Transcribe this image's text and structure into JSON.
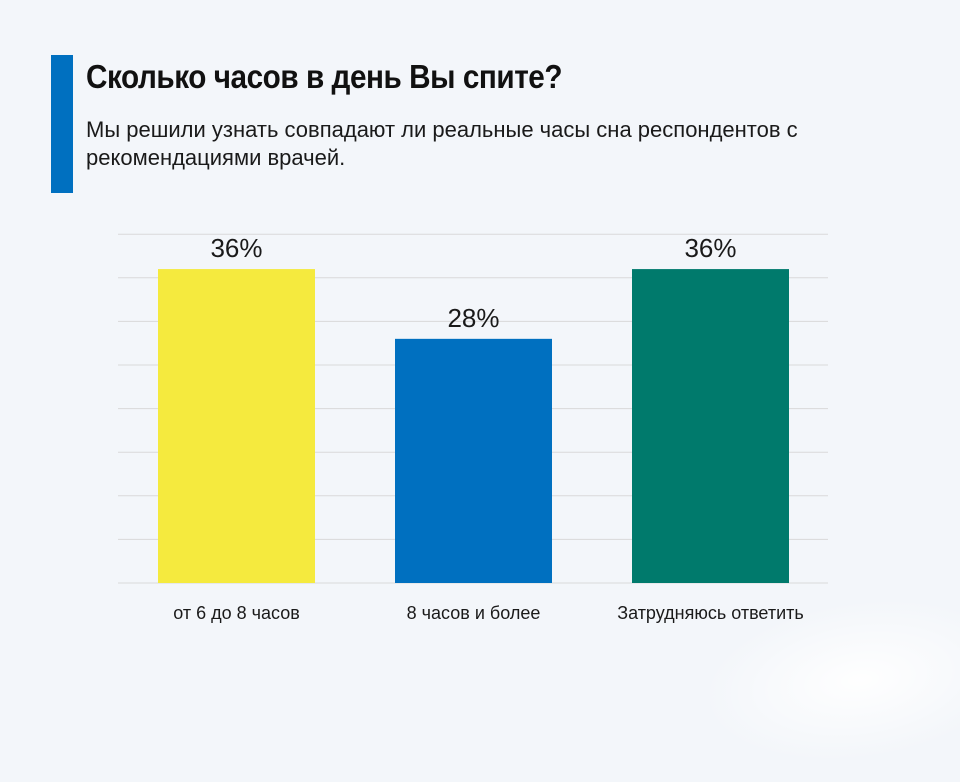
{
  "header": {
    "title": "Сколько часов в день Вы спите?",
    "subtitle": "Мы решили узнать совпадают ли реальные часы сна респондентов с рекомендациями врачей."
  },
  "colors": {
    "accent": "#0070c0",
    "gridline": "#d9d9d9",
    "label_text": "#1a1a1a"
  },
  "chart_data": {
    "type": "bar",
    "title": "Сколько часов в день Вы спите?",
    "subtitle": "Мы решили узнать совпадают ли реальные часы сна респондентов с рекомендациями врачей.",
    "xlabel": "",
    "ylabel": "",
    "categories": [
      "от 6 до 8 часов",
      "8 часов и более",
      "Затрудняюсь ответить"
    ],
    "values": [
      36,
      28,
      36
    ],
    "value_labels": [
      "36%",
      "28%",
      "36%"
    ],
    "colors": [
      "#f5ea3e",
      "#0070c0",
      "#007a6c"
    ],
    "ylim": [
      0,
      40
    ],
    "grid": true,
    "y_axis_visible": false,
    "legend": "none"
  }
}
